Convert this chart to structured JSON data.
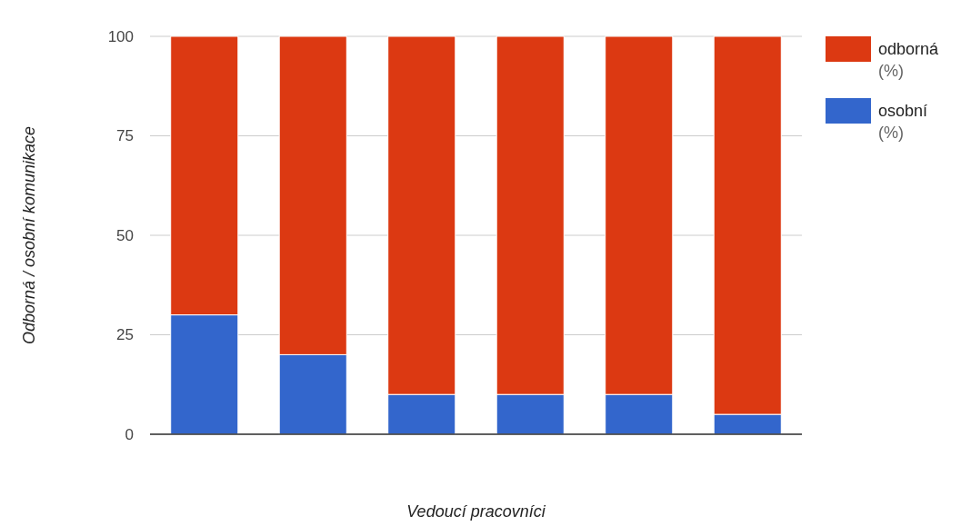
{
  "chart_data": {
    "type": "bar",
    "stacked": true,
    "xlabel": "Vedoucí pracovníci",
    "ylabel": "Odborná / osobní komunikace",
    "categories": [
      null,
      null,
      null,
      null,
      null,
      null
    ],
    "series": [
      {
        "name": "osobní (%)",
        "color": "#3366cc",
        "values": [
          30,
          20,
          10,
          10,
          10,
          5
        ]
      },
      {
        "name": "odborná (%)",
        "color": "#dc3912",
        "values": [
          70,
          80,
          90,
          90,
          90,
          95
        ]
      }
    ],
    "ylim": [
      0,
      100
    ],
    "yticks": [
      0,
      25,
      50,
      75,
      100
    ],
    "grid": "y",
    "legend": "top right"
  }
}
